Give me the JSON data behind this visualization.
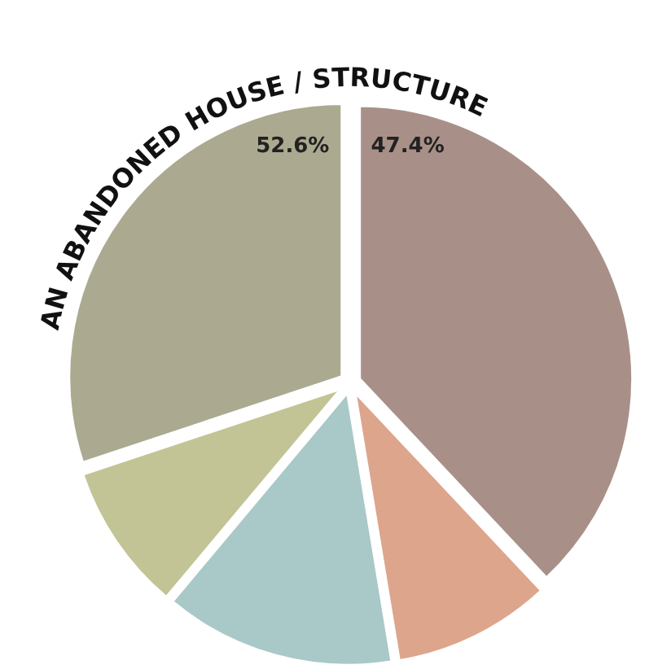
{
  "chart_data": {
    "type": "pie",
    "title": "AN ABANDONED HOUSE / STRUCTURE",
    "categories": [
      null,
      null,
      null,
      null,
      null
    ],
    "values": [
      38.0,
      9.4,
      13.7,
      8.8,
      30.1
    ],
    "colors": [
      "#a89088",
      "#dca58c",
      "#a9c8c8",
      "#c2c495",
      "#aba98f"
    ],
    "annotations": [
      "52.6%",
      "47.4%"
    ]
  }
}
